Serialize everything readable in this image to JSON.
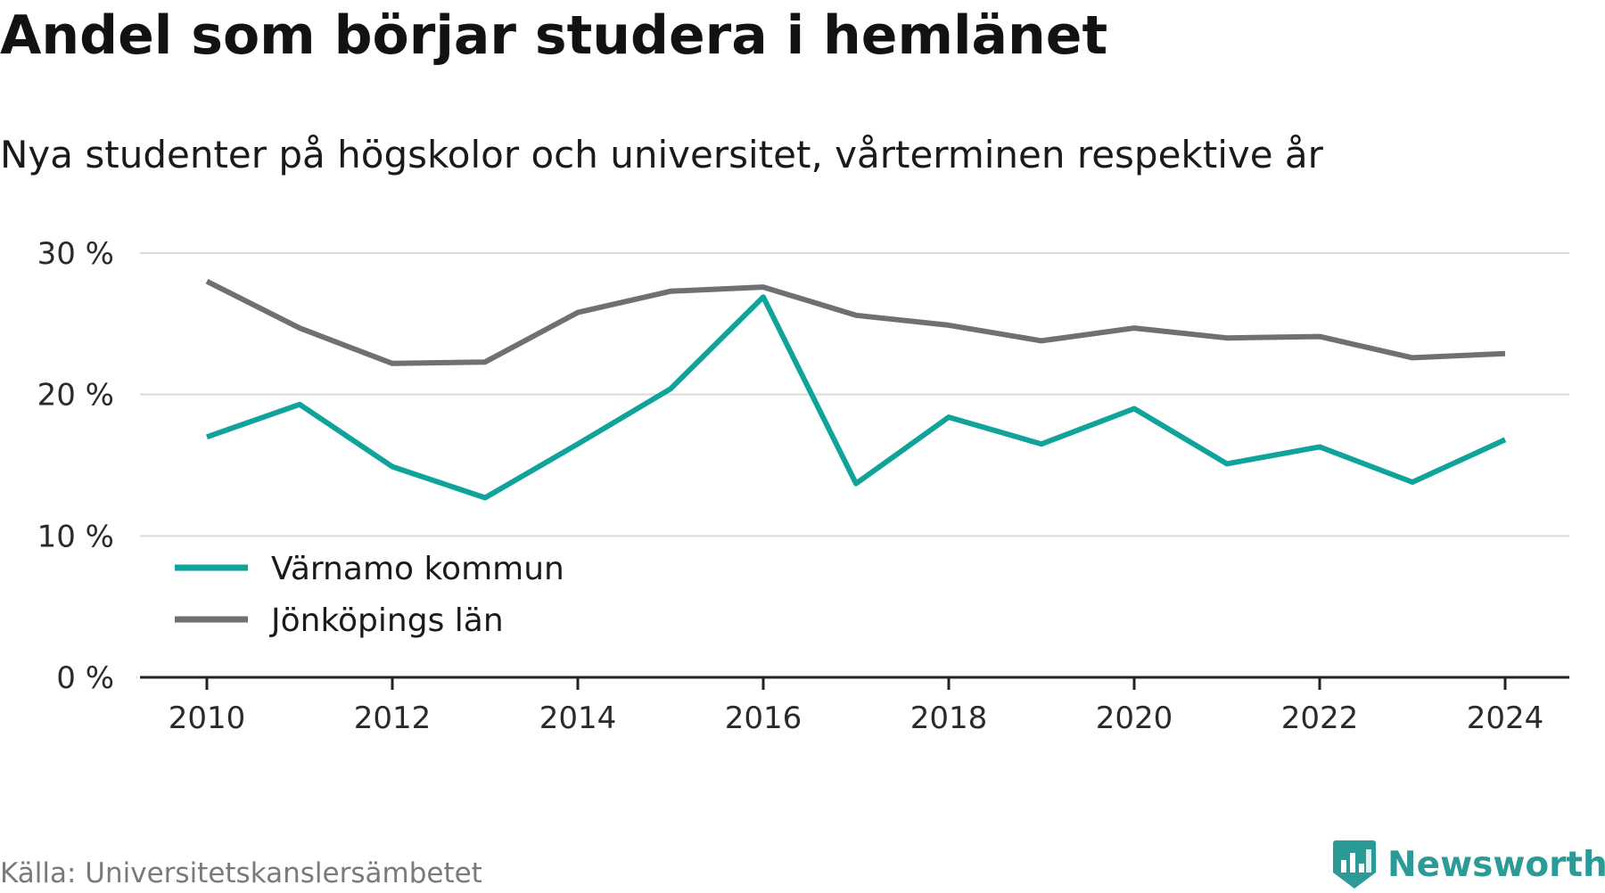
{
  "header": {
    "title": "Andel som börjar studera i hemlänet",
    "subtitle": "Nya studenter på högskolor och universitet, vårterminen respektive år"
  },
  "footer": {
    "source": "Källa: Universitetskanslersämbetet",
    "brand": "Newsworthy",
    "brand_icon": "newsworthy-logo-icon",
    "brand_color": "#2c9a96"
  },
  "chart_data": {
    "type": "line",
    "title": "Andel som börjar studera i hemlänet",
    "subtitle": "Nya studenter på högskolor och universitet, vårterminen respektive år",
    "x": [
      2010,
      2011,
      2012,
      2013,
      2014,
      2015,
      2016,
      2017,
      2018,
      2019,
      2020,
      2021,
      2022,
      2023,
      2024
    ],
    "x_ticks": [
      2010,
      2012,
      2014,
      2016,
      2018,
      2020,
      2022,
      2024
    ],
    "x_tick_labels": [
      "2010",
      "2012",
      "2014",
      "2016",
      "2018",
      "2020",
      "2022",
      "2024"
    ],
    "y_ticks": [
      0,
      10,
      20,
      30
    ],
    "y_tick_labels": [
      "0 %",
      "10 %",
      "20 %",
      "30 %"
    ],
    "ylim": [
      0,
      30
    ],
    "grid": true,
    "legend_position": "bottom-left",
    "series": [
      {
        "name": "Värnamo kommun",
        "color": "#0fa39b",
        "values": [
          17.0,
          19.3,
          14.9,
          12.7,
          16.5,
          20.4,
          26.9,
          13.7,
          18.4,
          16.5,
          19.0,
          15.1,
          16.3,
          13.8,
          16.8
        ]
      },
      {
        "name": "Jönköpings län",
        "color": "#706f74",
        "values": [
          28.0,
          24.7,
          22.2,
          22.3,
          25.8,
          27.3,
          27.6,
          25.6,
          24.9,
          23.8,
          24.7,
          24.0,
          24.1,
          22.6,
          22.9
        ]
      }
    ]
  }
}
